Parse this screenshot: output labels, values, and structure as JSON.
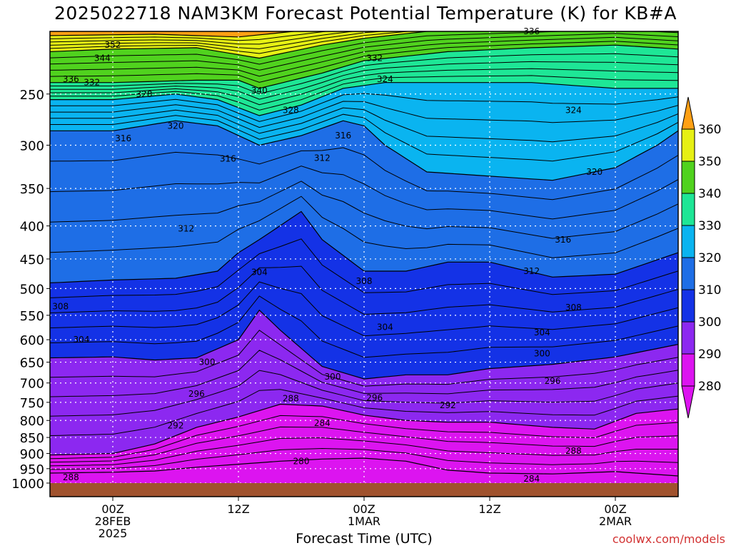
{
  "chart_data": {
    "type": "heatmap",
    "title": "2025022718 NAM3KM Forecast Potential Temperature (K) for KB#A",
    "xlabel": "Forecast Time (UTC)",
    "credit": "coolwx.com/models",
    "y_axis": {
      "scale": "log-pressure",
      "range": [
        1000,
        200
      ],
      "ticks": [
        250,
        300,
        350,
        400,
        450,
        500,
        550,
        600,
        650,
        700,
        750,
        800,
        850,
        900,
        950,
        1000
      ]
    },
    "x_axis": {
      "range_hours": [
        -6,
        54
      ],
      "ticks": [
        {
          "hour": 0,
          "lines": [
            "00Z",
            "28FEB",
            "2025"
          ]
        },
        {
          "hour": 12,
          "lines": [
            "12Z"
          ]
        },
        {
          "hour": 24,
          "lines": [
            "00Z",
            "1MAR"
          ]
        },
        {
          "hour": 36,
          "lines": [
            "12Z"
          ]
        },
        {
          "hour": 48,
          "lines": [
            "00Z",
            "2MAR"
          ]
        }
      ]
    },
    "colorbar": {
      "levels": [
        280,
        290,
        300,
        310,
        320,
        330,
        340,
        350,
        360
      ],
      "colors": [
        "#dc14f0",
        "#8c28f0",
        "#1432e6",
        "#1e6ee6",
        "#0ab4f0",
        "#1ee696",
        "#50d21e",
        "#e6f014",
        "#ffa014"
      ]
    },
    "colors": {
      "ground": "#a0522d",
      "grid": "#ffffff",
      "contour": "#000000"
    },
    "series": [
      {
        "name": "280",
        "points": [
          [
            -6,
            965
          ],
          [
            0,
            962
          ],
          [
            4,
            958
          ],
          [
            8,
            945
          ],
          [
            12,
            935
          ],
          [
            16,
            925
          ],
          [
            20,
            918
          ],
          [
            24,
            915
          ],
          [
            28,
            925
          ],
          [
            32,
            955
          ],
          [
            36,
            965
          ],
          [
            42,
            968
          ],
          [
            48,
            960
          ],
          [
            54,
            975
          ]
        ]
      },
      {
        "name": "290",
        "points": [
          [
            -6,
            905
          ],
          [
            0,
            900
          ],
          [
            4,
            870
          ],
          [
            8,
            820
          ],
          [
            12,
            790
          ],
          [
            16,
            755
          ],
          [
            20,
            760
          ],
          [
            24,
            785
          ],
          [
            28,
            800
          ],
          [
            32,
            805
          ],
          [
            36,
            805
          ],
          [
            42,
            820
          ],
          [
            46,
            825
          ],
          [
            50,
            780
          ],
          [
            54,
            768
          ]
        ]
      },
      {
        "name": "300",
        "points": [
          [
            -6,
            640
          ],
          [
            0,
            638
          ],
          [
            4,
            645
          ],
          [
            8,
            640
          ],
          [
            12,
            600
          ],
          [
            14,
            540
          ],
          [
            16,
            580
          ],
          [
            20,
            660
          ],
          [
            24,
            690
          ],
          [
            28,
            680
          ],
          [
            32,
            680
          ],
          [
            36,
            665
          ],
          [
            42,
            655
          ],
          [
            48,
            638
          ],
          [
            54,
            610
          ]
        ]
      },
      {
        "name": "310",
        "points": [
          [
            -6,
            490
          ],
          [
            0,
            485
          ],
          [
            6,
            482
          ],
          [
            10,
            470
          ],
          [
            12,
            440
          ],
          [
            14,
            420
          ],
          [
            18,
            380
          ],
          [
            20,
            420
          ],
          [
            24,
            470
          ],
          [
            28,
            470
          ],
          [
            32,
            455
          ],
          [
            36,
            455
          ],
          [
            42,
            480
          ],
          [
            48,
            475
          ],
          [
            54,
            440
          ]
        ]
      },
      {
        "name": "320",
        "points": [
          [
            -6,
            285
          ],
          [
            0,
            285
          ],
          [
            6,
            275
          ],
          [
            10,
            280
          ],
          [
            14,
            300
          ],
          [
            18,
            290
          ],
          [
            22,
            275
          ],
          [
            24,
            280
          ],
          [
            26,
            300
          ],
          [
            30,
            330
          ],
          [
            36,
            335
          ],
          [
            42,
            340
          ],
          [
            48,
            325
          ],
          [
            52,
            300
          ],
          [
            54,
            285
          ]
        ]
      },
      {
        "name": "330",
        "points": [
          [
            -6,
            255
          ],
          [
            0,
            255
          ],
          [
            6,
            250
          ],
          [
            10,
            255
          ],
          [
            14,
            270
          ],
          [
            18,
            260
          ],
          [
            22,
            245
          ],
          [
            26,
            240
          ],
          [
            32,
            240
          ],
          [
            40,
            240
          ],
          [
            48,
            245
          ],
          [
            54,
            245
          ]
        ]
      },
      {
        "name": "340",
        "points": [
          [
            -6,
            240
          ],
          [
            0,
            240
          ],
          [
            8,
            238
          ],
          [
            12,
            238
          ],
          [
            14,
            245
          ],
          [
            20,
            232
          ],
          [
            24,
            222
          ],
          [
            32,
            215
          ],
          [
            40,
            212
          ],
          [
            48,
            210
          ],
          [
            54,
            213
          ]
        ]
      },
      {
        "name": "350",
        "points": [
          [
            -6,
            215
          ],
          [
            0,
            213
          ],
          [
            8,
            212
          ],
          [
            14,
            220
          ],
          [
            20,
            210
          ],
          [
            24,
            205
          ],
          [
            30,
            200
          ],
          [
            40,
            198
          ],
          [
            48,
            196
          ],
          [
            54,
            198
          ]
        ]
      },
      {
        "name": "360",
        "points": [
          [
            -6,
            203
          ],
          [
            4,
            202
          ],
          [
            12,
            204
          ],
          [
            24,
            195
          ],
          [
            36,
            192
          ],
          [
            54,
            192
          ]
        ]
      }
    ],
    "contour_labels": [
      {
        "text": "352",
        "hour": 0,
        "p": 210
      },
      {
        "text": "344",
        "hour": -1,
        "p": 220
      },
      {
        "text": "336",
        "hour": -4,
        "p": 237
      },
      {
        "text": "332",
        "hour": -2,
        "p": 240
      },
      {
        "text": "328",
        "hour": 3,
        "p": 250
      },
      {
        "text": "340",
        "hour": 14,
        "p": 247
      },
      {
        "text": "328",
        "hour": 17,
        "p": 265
      },
      {
        "text": "332",
        "hour": 25,
        "p": 220
      },
      {
        "text": "324",
        "hour": 26,
        "p": 237
      },
      {
        "text": "336",
        "hour": 40,
        "p": 200
      },
      {
        "text": "324",
        "hour": 44,
        "p": 265
      },
      {
        "text": "320",
        "hour": 6,
        "p": 280
      },
      {
        "text": "316",
        "hour": 1,
        "p": 293
      },
      {
        "text": "316",
        "hour": 11,
        "p": 315
      },
      {
        "text": "316",
        "hour": 22,
        "p": 290
      },
      {
        "text": "312",
        "hour": 20,
        "p": 314
      },
      {
        "text": "320",
        "hour": 46,
        "p": 330
      },
      {
        "text": "312",
        "hour": 7,
        "p": 404
      },
      {
        "text": "316",
        "hour": 43,
        "p": 420
      },
      {
        "text": "304",
        "hour": 14,
        "p": 472
      },
      {
        "text": "308",
        "hour": 24,
        "p": 487
      },
      {
        "text": "312",
        "hour": 40,
        "p": 470
      },
      {
        "text": "308",
        "hour": -5,
        "p": 533
      },
      {
        "text": "304",
        "hour": 26,
        "p": 574
      },
      {
        "text": "308",
        "hour": 44,
        "p": 535
      },
      {
        "text": "304",
        "hour": -3,
        "p": 600
      },
      {
        "text": "304",
        "hour": 41,
        "p": 585
      },
      {
        "text": "300",
        "hour": 9,
        "p": 650
      },
      {
        "text": "300",
        "hour": 41,
        "p": 630
      },
      {
        "text": "300",
        "hour": 21,
        "p": 685
      },
      {
        "text": "296",
        "hour": 8,
        "p": 728
      },
      {
        "text": "296",
        "hour": 42,
        "p": 695
      },
      {
        "text": "288",
        "hour": 17,
        "p": 740
      },
      {
        "text": "296",
        "hour": 25,
        "p": 738
      },
      {
        "text": "292",
        "hour": 32,
        "p": 758
      },
      {
        "text": "292",
        "hour": 6,
        "p": 815
      },
      {
        "text": "284",
        "hour": 20,
        "p": 808
      },
      {
        "text": "288",
        "hour": 44,
        "p": 892
      },
      {
        "text": "280",
        "hour": 18,
        "p": 925
      },
      {
        "text": "288",
        "hour": -4,
        "p": 980
      },
      {
        "text": "284",
        "hour": 40,
        "p": 985
      }
    ]
  }
}
